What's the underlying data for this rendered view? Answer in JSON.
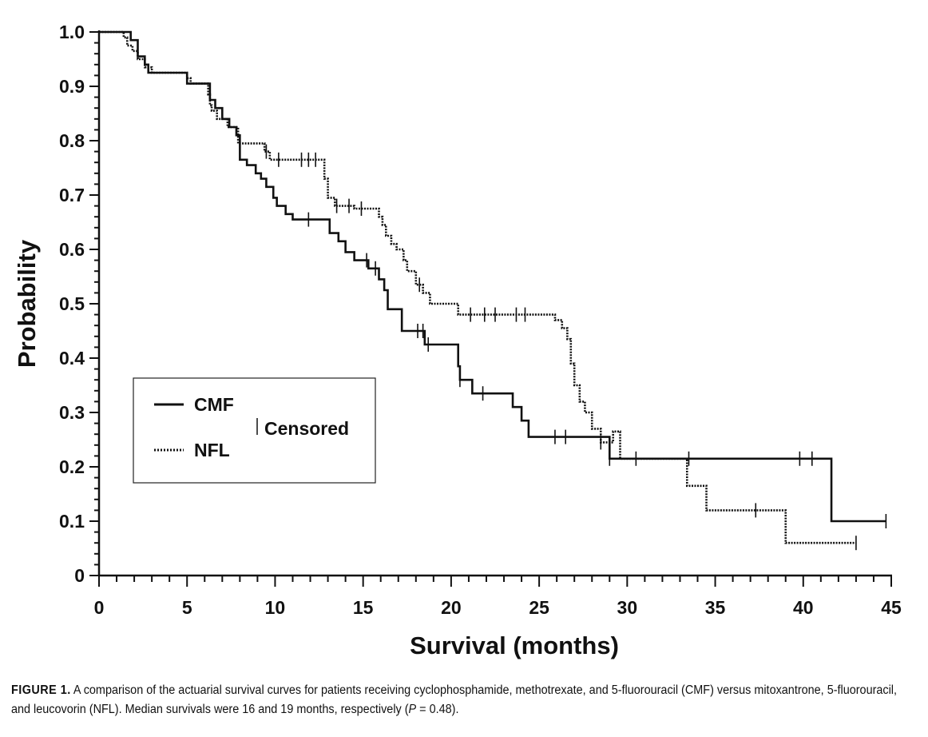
{
  "chart_data": {
    "type": "line",
    "title": "",
    "xlabel": "Survival (months)",
    "ylabel": "Probability",
    "xlim": [
      0,
      45
    ],
    "ylim": [
      0,
      1.0
    ],
    "x_ticks": [
      0,
      5,
      10,
      15,
      20,
      25,
      30,
      35,
      40,
      45
    ],
    "x_tick_labels": [
      "0",
      "5",
      "10",
      "15",
      "20",
      "25",
      "30",
      "35",
      "40",
      "45"
    ],
    "y_ticks": [
      0,
      0.1,
      0.2,
      0.3,
      0.4,
      0.5,
      0.6,
      0.7,
      0.8,
      0.9,
      1.0
    ],
    "y_tick_labels": [
      "0",
      "0.1",
      "0.2",
      "0.3",
      "0.4",
      "0.5",
      "0.6",
      "0.7",
      "0.8",
      "0.9",
      "1.0"
    ],
    "grid": false,
    "legend_position": "lower-left",
    "legend_censored_label": "Censored",
    "series": [
      {
        "name": "CMF",
        "style": "solid",
        "color": "#111111",
        "steps": [
          [
            0,
            1.0
          ],
          [
            0.3,
            1.0
          ],
          [
            1.8,
            0.985
          ],
          [
            2.2,
            0.955
          ],
          [
            2.6,
            0.94
          ],
          [
            2.8,
            0.925
          ],
          [
            5.0,
            0.905
          ],
          [
            6.3,
            0.875
          ],
          [
            6.6,
            0.86
          ],
          [
            7.0,
            0.84
          ],
          [
            7.4,
            0.825
          ],
          [
            7.8,
            0.81
          ],
          [
            8.0,
            0.765
          ],
          [
            8.4,
            0.755
          ],
          [
            8.9,
            0.74
          ],
          [
            9.2,
            0.73
          ],
          [
            9.5,
            0.715
          ],
          [
            9.9,
            0.695
          ],
          [
            10.1,
            0.68
          ],
          [
            10.6,
            0.665
          ],
          [
            11.0,
            0.655
          ],
          [
            13.1,
            0.63
          ],
          [
            13.6,
            0.615
          ],
          [
            14.0,
            0.595
          ],
          [
            14.5,
            0.58
          ],
          [
            15.3,
            0.565
          ],
          [
            15.9,
            0.545
          ],
          [
            16.2,
            0.525
          ],
          [
            16.4,
            0.49
          ],
          [
            17.2,
            0.45
          ],
          [
            18.5,
            0.425
          ],
          [
            20.4,
            0.385
          ],
          [
            20.5,
            0.36
          ],
          [
            21.2,
            0.335
          ],
          [
            23.5,
            0.31
          ],
          [
            24.0,
            0.285
          ],
          [
            24.4,
            0.255
          ],
          [
            29.0,
            0.215
          ],
          [
            41.6,
            0.1
          ],
          [
            44.7,
            0.1
          ]
        ],
        "censored": [
          11.9,
          15.2,
          15.7,
          18.1,
          18.4,
          18.7,
          20.5,
          21.8,
          25.9,
          26.5,
          29.0,
          30.5,
          33.5,
          39.8,
          40.5,
          44.7
        ]
      },
      {
        "name": "NFL",
        "style": "dotted",
        "color": "#111111",
        "steps": [
          [
            0,
            1.0
          ],
          [
            1.2,
            1.0
          ],
          [
            1.4,
            0.99
          ],
          [
            1.6,
            0.975
          ],
          [
            1.9,
            0.965
          ],
          [
            2.2,
            0.95
          ],
          [
            2.6,
            0.935
          ],
          [
            3.0,
            0.925
          ],
          [
            5.0,
            0.915
          ],
          [
            5.2,
            0.905
          ],
          [
            6.2,
            0.885
          ],
          [
            6.3,
            0.865
          ],
          [
            6.4,
            0.855
          ],
          [
            6.7,
            0.84
          ],
          [
            7.3,
            0.825
          ],
          [
            7.9,
            0.795
          ],
          [
            9.4,
            0.78
          ],
          [
            9.7,
            0.765
          ],
          [
            12.8,
            0.73
          ],
          [
            13.0,
            0.695
          ],
          [
            13.4,
            0.68
          ],
          [
            14.5,
            0.675
          ],
          [
            15.9,
            0.66
          ],
          [
            16.1,
            0.645
          ],
          [
            16.3,
            0.625
          ],
          [
            16.6,
            0.61
          ],
          [
            16.9,
            0.6
          ],
          [
            17.3,
            0.58
          ],
          [
            17.5,
            0.56
          ],
          [
            18.0,
            0.535
          ],
          [
            18.4,
            0.52
          ],
          [
            18.8,
            0.5
          ],
          [
            20.4,
            0.48
          ],
          [
            25.9,
            0.47
          ],
          [
            26.3,
            0.455
          ],
          [
            26.6,
            0.435
          ],
          [
            26.8,
            0.39
          ],
          [
            27.0,
            0.35
          ],
          [
            27.3,
            0.32
          ],
          [
            27.6,
            0.3
          ],
          [
            28.0,
            0.27
          ],
          [
            28.5,
            0.245
          ],
          [
            29.2,
            0.265
          ],
          [
            29.6,
            0.215
          ],
          [
            33.4,
            0.165
          ],
          [
            34.5,
            0.12
          ],
          [
            39.0,
            0.06
          ],
          [
            43.0,
            0.06
          ]
        ],
        "censored": [
          9.5,
          10.2,
          11.5,
          11.9,
          12.3,
          13.5,
          14.2,
          14.9,
          18.2,
          21.1,
          21.9,
          22.5,
          23.7,
          24.2,
          28.5,
          37.3,
          43.0
        ]
      }
    ]
  },
  "caption": {
    "label": "FIGURE 1.",
    "text_before_p": " A comparison of the actuarial survival curves for patients receiving cyclophosphamide, methotrexate, and 5-fluorouracil (CMF) versus mitoxantrone, 5-fluorouracil, and leucovorin (NFL). Median survivals were 16 and 19 months, respectively (",
    "p_symbol": "P",
    "text_after_p": " = 0.48)."
  }
}
